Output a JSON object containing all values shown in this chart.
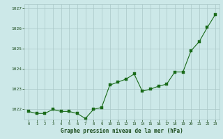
{
  "x": [
    0,
    1,
    2,
    3,
    4,
    5,
    6,
    7,
    8,
    9,
    10,
    11,
    12,
    13,
    14,
    15,
    16,
    17,
    18,
    19,
    20,
    21,
    22,
    23
  ],
  "y": [
    1021.9,
    1021.8,
    1021.8,
    1022.0,
    1021.9,
    1021.9,
    1021.8,
    1021.55,
    1022.0,
    1022.1,
    1023.2,
    1023.35,
    1023.5,
    1023.75,
    1022.9,
    1023.0,
    1023.15,
    1023.25,
    1023.85,
    1023.85,
    1024.9,
    1025.35,
    1026.05,
    1026.7
  ],
  "line_color": "#1a6b1a",
  "marker_color": "#1a6b1a",
  "bg_color": "#cce8e8",
  "plot_bg": "#cce8e8",
  "grid_color": "#aac8c8",
  "xlabel": "Graphe pression niveau de la mer (hPa)",
  "xlabel_color": "#1a4a1a",
  "tick_color": "#1a4a1a",
  "ylim": [
    1021.5,
    1027.2
  ],
  "yticks": [
    1022,
    1023,
    1024,
    1025,
    1026,
    1027
  ],
  "xticks": [
    0,
    1,
    2,
    3,
    4,
    5,
    6,
    7,
    8,
    9,
    10,
    11,
    12,
    13,
    14,
    15,
    16,
    17,
    18,
    19,
    20,
    21,
    22,
    23
  ],
  "figsize": [
    3.2,
    2.0
  ],
  "dpi": 100
}
